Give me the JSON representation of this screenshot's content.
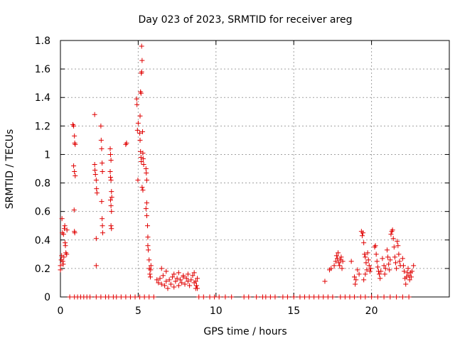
{
  "chart_data": {
    "type": "scatter",
    "title": "Day 023 of 2023, SRMTID for receiver areg",
    "xlabel": "GPS time / hours",
    "ylabel": "SRMTID / TECUs",
    "xlim": [
      0,
      25
    ],
    "ylim": [
      0,
      1.8
    ],
    "xticks": [
      0,
      5,
      10,
      15,
      20
    ],
    "yticks": [
      0,
      0.2,
      0.4,
      0.6,
      0.8,
      1,
      1.2,
      1.4,
      1.6,
      1.8
    ],
    "ytick_labels": [
      "0",
      "0.2",
      "0.4",
      "0.6",
      "0.8",
      "1",
      "1.2",
      "1.4",
      "1.6",
      "1.8"
    ],
    "grid": true,
    "marker": "+",
    "color": "#e00000",
    "series": [
      {
        "name": "SRMTID",
        "points": [
          [
            0.0,
            0.19
          ],
          [
            0.0,
            0.22
          ],
          [
            0.05,
            0.26
          ],
          [
            0.08,
            0.29
          ],
          [
            0.1,
            0.55
          ],
          [
            0.12,
            0.45
          ],
          [
            0.15,
            0.25
          ],
          [
            0.18,
            0.23
          ],
          [
            0.2,
            0.44
          ],
          [
            0.22,
            0.28
          ],
          [
            0.25,
            0.48
          ],
          [
            0.28,
            0.5
          ],
          [
            0.3,
            0.38
          ],
          [
            0.32,
            0.36
          ],
          [
            0.35,
            0.31
          ],
          [
            0.4,
            0.3
          ],
          [
            0.42,
            0.47
          ],
          [
            0.8,
            1.21
          ],
          [
            0.85,
            1.2
          ],
          [
            0.9,
            1.13
          ],
          [
            0.92,
            1.08
          ],
          [
            0.95,
            1.07
          ],
          [
            0.85,
            0.92
          ],
          [
            0.9,
            0.88
          ],
          [
            0.95,
            0.85
          ],
          [
            0.88,
            0.61
          ],
          [
            0.9,
            0.46
          ],
          [
            0.92,
            0.45
          ],
          [
            2.2,
            1.28
          ],
          [
            2.2,
            0.93
          ],
          [
            2.22,
            0.89
          ],
          [
            2.25,
            0.86
          ],
          [
            2.3,
            0.82
          ],
          [
            2.32,
            0.76
          ],
          [
            2.35,
            0.73
          ],
          [
            2.3,
            0.41
          ],
          [
            2.3,
            0.22
          ],
          [
            2.6,
            1.2
          ],
          [
            2.62,
            1.1
          ],
          [
            2.65,
            1.04
          ],
          [
            2.68,
            0.94
          ],
          [
            2.7,
            0.88
          ],
          [
            2.65,
            0.67
          ],
          [
            2.68,
            0.55
          ],
          [
            2.7,
            0.5
          ],
          [
            2.72,
            0.45
          ],
          [
            3.2,
            1.04
          ],
          [
            3.22,
            1.0
          ],
          [
            3.25,
            0.96
          ],
          [
            3.2,
            0.88
          ],
          [
            3.22,
            0.84
          ],
          [
            3.25,
            0.82
          ],
          [
            3.28,
            0.74
          ],
          [
            3.3,
            0.7
          ],
          [
            3.22,
            0.68
          ],
          [
            3.25,
            0.64
          ],
          [
            3.28,
            0.6
          ],
          [
            3.25,
            0.5
          ],
          [
            3.28,
            0.48
          ],
          [
            4.2,
            1.07
          ],
          [
            4.25,
            1.08
          ],
          [
            4.9,
            1.39
          ],
          [
            4.92,
            1.35
          ],
          [
            4.95,
            1.17
          ],
          [
            4.98,
            0.82
          ],
          [
            5.0,
            1.22
          ],
          [
            5.1,
            1.15
          ],
          [
            5.12,
            1.1
          ],
          [
            5.15,
            1.02
          ],
          [
            5.18,
            0.98
          ],
          [
            5.2,
            0.95
          ],
          [
            5.12,
            1.27
          ],
          [
            5.15,
            1.44
          ],
          [
            5.18,
            1.43
          ],
          [
            5.2,
            1.57
          ],
          [
            5.22,
            1.58
          ],
          [
            5.25,
            1.66
          ],
          [
            5.22,
            1.76
          ],
          [
            5.28,
            1.16
          ],
          [
            5.3,
            1.01
          ],
          [
            5.32,
            0.97
          ],
          [
            5.35,
            0.93
          ],
          [
            5.25,
            0.77
          ],
          [
            5.3,
            0.75
          ],
          [
            5.5,
            0.9
          ],
          [
            5.52,
            0.87
          ],
          [
            5.55,
            0.82
          ],
          [
            5.5,
            0.62
          ],
          [
            5.55,
            0.66
          ],
          [
            5.55,
            0.57
          ],
          [
            5.6,
            0.5
          ],
          [
            5.62,
            0.42
          ],
          [
            5.62,
            0.36
          ],
          [
            5.65,
            0.33
          ],
          [
            5.7,
            0.26
          ],
          [
            5.72,
            0.2
          ],
          [
            5.75,
            0.16
          ],
          [
            5.78,
            0.14
          ],
          [
            5.8,
            0.19
          ],
          [
            5.82,
            0.22
          ],
          [
            6.2,
            0.12
          ],
          [
            6.3,
            0.1
          ],
          [
            6.4,
            0.13
          ],
          [
            6.5,
            0.09
          ],
          [
            6.6,
            0.15
          ],
          [
            6.7,
            0.08
          ],
          [
            6.8,
            0.11
          ],
          [
            6.9,
            0.06
          ],
          [
            7.0,
            0.12
          ],
          [
            7.1,
            0.09
          ],
          [
            7.2,
            0.14
          ],
          [
            7.3,
            0.07
          ],
          [
            7.4,
            0.11
          ],
          [
            7.5,
            0.13
          ],
          [
            7.6,
            0.08
          ],
          [
            7.7,
            0.12
          ],
          [
            7.8,
            0.1
          ],
          [
            7.9,
            0.14
          ],
          [
            8.0,
            0.09
          ],
          [
            8.1,
            0.13
          ],
          [
            8.2,
            0.11
          ],
          [
            8.3,
            0.08
          ],
          [
            8.4,
            0.12
          ],
          [
            8.5,
            0.15
          ],
          [
            8.6,
            0.1
          ],
          [
            8.7,
            0.06
          ],
          [
            8.8,
            0.13
          ],
          [
            6.5,
            0.2
          ],
          [
            6.8,
            0.18
          ],
          [
            7.3,
            0.16
          ],
          [
            7.6,
            0.17
          ],
          [
            7.9,
            0.15
          ],
          [
            8.2,
            0.16
          ],
          [
            8.6,
            0.17
          ],
          [
            8.7,
            0.11
          ],
          [
            8.75,
            0.08
          ],
          [
            8.8,
            0.06
          ],
          [
            0.6,
            0.0
          ],
          [
            0.9,
            0.0
          ],
          [
            1.1,
            0.0
          ],
          [
            1.3,
            0.0
          ],
          [
            1.5,
            0.0
          ],
          [
            1.7,
            0.0
          ],
          [
            1.9,
            0.0
          ],
          [
            2.3,
            0.0
          ],
          [
            2.6,
            0.0
          ],
          [
            2.9,
            0.0
          ],
          [
            3.1,
            0.0
          ],
          [
            3.4,
            0.0
          ],
          [
            3.6,
            0.0
          ],
          [
            3.9,
            0.0
          ],
          [
            4.2,
            0.0
          ],
          [
            4.5,
            0.0
          ],
          [
            4.8,
            0.0
          ],
          [
            5.1,
            0.0
          ],
          [
            5.4,
            0.0
          ],
          [
            5.7,
            0.0
          ],
          [
            6.0,
            0.0
          ],
          [
            8.9,
            0.0
          ],
          [
            9.2,
            0.0
          ],
          [
            9.6,
            0.0
          ],
          [
            9.9,
            0.0
          ],
          [
            10.2,
            0.0
          ],
          [
            10.6,
            0.0
          ],
          [
            11.0,
            0.0
          ],
          [
            11.8,
            0.0
          ],
          [
            12.1,
            0.0
          ],
          [
            12.6,
            0.0
          ],
          [
            13.0,
            0.0
          ],
          [
            13.2,
            0.0
          ],
          [
            13.5,
            0.0
          ],
          [
            13.8,
            0.0
          ],
          [
            14.3,
            0.0
          ],
          [
            14.6,
            0.0
          ],
          [
            15.0,
            0.0
          ],
          [
            15.4,
            0.0
          ],
          [
            15.7,
            0.0
          ],
          [
            16.0,
            0.0
          ],
          [
            16.3,
            0.0
          ],
          [
            16.6,
            0.0
          ],
          [
            16.9,
            0.0
          ],
          [
            17.2,
            0.0
          ],
          [
            17.5,
            0.0
          ],
          [
            18.0,
            0.0
          ],
          [
            18.3,
            0.0
          ],
          [
            18.6,
            0.0
          ],
          [
            18.9,
            0.0
          ],
          [
            19.3,
            0.0
          ],
          [
            19.6,
            0.0
          ],
          [
            20.0,
            0.0
          ],
          [
            20.4,
            0.0
          ],
          [
            20.8,
            0.0
          ],
          [
            21.2,
            0.0
          ],
          [
            21.6,
            0.0
          ],
          [
            22.0,
            0.0
          ],
          [
            22.4,
            0.0
          ],
          [
            17.0,
            0.11
          ],
          [
            17.3,
            0.19
          ],
          [
            17.4,
            0.2
          ],
          [
            17.6,
            0.22
          ],
          [
            17.7,
            0.25
          ],
          [
            17.75,
            0.29
          ],
          [
            17.8,
            0.27
          ],
          [
            17.85,
            0.31
          ],
          [
            17.9,
            0.24
          ],
          [
            17.95,
            0.22
          ],
          [
            18.0,
            0.26
          ],
          [
            18.05,
            0.28
          ],
          [
            18.1,
            0.2
          ],
          [
            18.15,
            0.25
          ],
          [
            18.7,
            0.25
          ],
          [
            18.9,
            0.14
          ],
          [
            18.95,
            0.09
          ],
          [
            19.0,
            0.12
          ],
          [
            19.1,
            0.19
          ],
          [
            19.2,
            0.16
          ],
          [
            19.35,
            0.46
          ],
          [
            19.4,
            0.43
          ],
          [
            19.45,
            0.45
          ],
          [
            19.5,
            0.38
          ],
          [
            19.55,
            0.3
          ],
          [
            19.6,
            0.28
          ],
          [
            19.65,
            0.24
          ],
          [
            19.7,
            0.19
          ],
          [
            19.75,
            0.31
          ],
          [
            19.8,
            0.26
          ],
          [
            19.85,
            0.22
          ],
          [
            19.9,
            0.18
          ],
          [
            19.95,
            0.2
          ],
          [
            19.5,
            0.12
          ],
          [
            19.6,
            0.16
          ],
          [
            20.2,
            0.35
          ],
          [
            20.25,
            0.36
          ],
          [
            20.3,
            0.3
          ],
          [
            20.35,
            0.25
          ],
          [
            20.4,
            0.21
          ],
          [
            20.45,
            0.18
          ],
          [
            20.5,
            0.16
          ],
          [
            20.55,
            0.13
          ],
          [
            20.6,
            0.18
          ],
          [
            20.7,
            0.27
          ],
          [
            20.8,
            0.22
          ],
          [
            20.85,
            0.16
          ],
          [
            20.9,
            0.2
          ],
          [
            21.0,
            0.33
          ],
          [
            21.05,
            0.28
          ],
          [
            21.1,
            0.23
          ],
          [
            21.15,
            0.19
          ],
          [
            21.2,
            0.26
          ],
          [
            21.25,
            0.44
          ],
          [
            21.3,
            0.46
          ],
          [
            21.35,
            0.47
          ],
          [
            21.4,
            0.41
          ],
          [
            21.45,
            0.35
          ],
          [
            21.5,
            0.28
          ],
          [
            21.55,
            0.24
          ],
          [
            21.6,
            0.2
          ],
          [
            21.65,
            0.39
          ],
          [
            21.7,
            0.36
          ],
          [
            21.75,
            0.3
          ],
          [
            21.8,
            0.25
          ],
          [
            21.85,
            0.22
          ],
          [
            22.0,
            0.27
          ],
          [
            22.05,
            0.22
          ],
          [
            22.1,
            0.18
          ],
          [
            22.15,
            0.13
          ],
          [
            22.2,
            0.09
          ],
          [
            22.25,
            0.14
          ],
          [
            22.3,
            0.17
          ],
          [
            22.35,
            0.2
          ],
          [
            22.4,
            0.15
          ],
          [
            22.45,
            0.12
          ],
          [
            22.5,
            0.17
          ],
          [
            22.55,
            0.14
          ],
          [
            22.6,
            0.18
          ],
          [
            22.7,
            0.22
          ]
        ]
      }
    ]
  }
}
